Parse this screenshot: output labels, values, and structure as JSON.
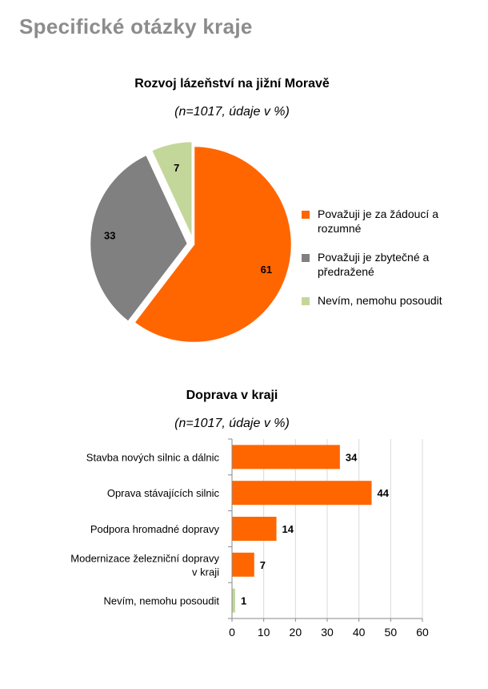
{
  "page": {
    "title": "Specifické otázky kraje"
  },
  "chart_data": [
    {
      "type": "pie",
      "title": "Rozvoj lázeňství na jižní Moravě",
      "subtitle": "(n=1017, údaje v %)",
      "slices": [
        {
          "label": "Považuji je za žádoucí a rozumné",
          "value": 61,
          "color": "#ff6600"
        },
        {
          "label": "Považuji je zbytečné a předražené",
          "value": 33,
          "color": "#808080"
        },
        {
          "label": "Nevím, nemohu posoudit",
          "value": 7,
          "color": "#c4d79b"
        }
      ],
      "legend": "right"
    },
    {
      "type": "bar",
      "orientation": "horizontal",
      "title": "Doprava v kraji",
      "subtitle": "(n=1017, údaje v %)",
      "categories": [
        "Stavba nových silnic a dálnic",
        "Oprava stávajících silnic",
        "Podpora hromadné dopravy",
        "Modernizace železniční dopravy v kraji",
        "Nevím, nemohu posoudit"
      ],
      "category_lines": [
        [
          "Stavba nových silnic a dálnic"
        ],
        [
          "Oprava stávajících silnic"
        ],
        [
          "Podpora hromadné dopravy"
        ],
        [
          "Modernizace železniční dopravy",
          "v kraji"
        ],
        [
          "Nevím, nemohu posoudit"
        ]
      ],
      "values": [
        34,
        44,
        14,
        7,
        1
      ],
      "colors": [
        "#ff6600",
        "#ff6600",
        "#ff6600",
        "#ff6600",
        "#c4d79b"
      ],
      "xlim": [
        0,
        60
      ],
      "xticks": [
        0,
        10,
        20,
        30,
        40,
        50,
        60
      ],
      "grid": true
    }
  ]
}
